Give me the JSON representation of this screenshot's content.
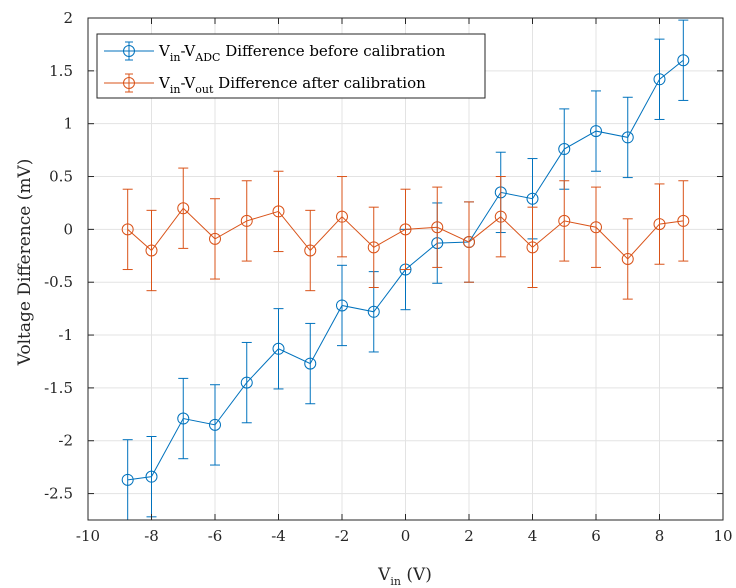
{
  "chart_data": {
    "type": "line",
    "xlabel": "V",
    "xlabel_sub": "in",
    "xlabel_unit": " (V)",
    "ylabel": "Voltage Difference (mV)",
    "xlim": [
      -10,
      10
    ],
    "ylim": [
      -2.75,
      2
    ],
    "xticks": [
      -10,
      -8,
      -6,
      -4,
      -2,
      0,
      2,
      4,
      6,
      8,
      10
    ],
    "yticks": [
      -2.5,
      -2,
      -1.5,
      -1,
      -0.5,
      0,
      0.5,
      1,
      1.5,
      2
    ],
    "xtick_labels": [
      "-10",
      "-8",
      "-6",
      "-4",
      "-2",
      "0",
      "2",
      "4",
      "6",
      "8",
      "10"
    ],
    "ytick_labels": [
      "-2.5",
      "-2",
      "-1.5",
      "-1",
      "-0.5",
      "0",
      "0.5",
      "1",
      "1.5",
      "2"
    ],
    "grid": true,
    "legend_position": "top-left",
    "x": [
      -8.75,
      -8,
      -7,
      -6,
      -5,
      -4,
      -3,
      -2,
      -1,
      0,
      1,
      2,
      3,
      4,
      5,
      6,
      7,
      8,
      8.75
    ],
    "series": [
      {
        "legend_parts": [
          "V",
          "in",
          "-V",
          "ADC",
          " Difference before calibration"
        ],
        "color": "#0072BD",
        "values": [
          -2.37,
          -2.34,
          -1.79,
          -1.85,
          -1.45,
          -1.13,
          -1.27,
          -0.72,
          -0.78,
          -0.38,
          -0.13,
          -0.12,
          0.35,
          0.29,
          0.76,
          0.93,
          0.87,
          1.42,
          1.6
        ],
        "error": 0.38
      },
      {
        "legend_parts": [
          "V",
          "in",
          "-V",
          "out",
          " Difference after calibration"
        ],
        "color": "#D95319",
        "values": [
          0.0,
          -0.2,
          0.2,
          -0.09,
          0.08,
          0.17,
          -0.2,
          0.12,
          -0.17,
          0.0,
          0.02,
          -0.12,
          0.12,
          -0.17,
          0.08,
          0.02,
          -0.28,
          0.05,
          0.08
        ],
        "error": 0.38
      }
    ]
  }
}
